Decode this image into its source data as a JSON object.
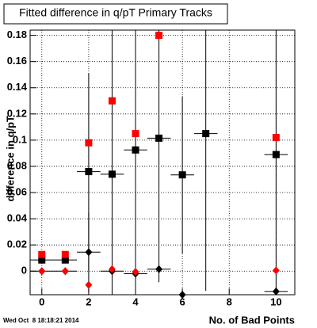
{
  "chart_data": {
    "type": "scatter",
    "title": "Fitted difference in q/pT Primary Tracks",
    "x_label": "No. of Bad Points",
    "y_label": "difference in q/pT",
    "timestamp": "Wed Oct  8 18:18:21 2014",
    "xlim": [
      -0.5,
      10.8
    ],
    "ylim": [
      -0.018,
      0.184
    ],
    "xticks": [
      0,
      2,
      4,
      6,
      8,
      10
    ],
    "yticks": [
      0,
      0.02,
      0.04,
      0.06,
      0.08,
      0.1,
      0.12,
      0.14,
      0.16,
      0.18
    ],
    "grid": true,
    "series": [
      {
        "color": "#000000",
        "marker": "square",
        "xerr": 0.5,
        "x": [
          0,
          1,
          2,
          3,
          4,
          5,
          6,
          7,
          10
        ],
        "values": [
          0.0085,
          0.0085,
          0.076,
          0.074,
          0.0925,
          0.1015,
          0.0735,
          0.105,
          0.089
        ],
        "errors": [
          0.002,
          0.002,
          0.075,
          0.12,
          0.12,
          0.11,
          0.06,
          0.12,
          0.11
        ]
      },
      {
        "color": "#ff0000",
        "marker": "square",
        "x": [
          0,
          1,
          2,
          3,
          4,
          5,
          10
        ],
        "values": [
          0.0127,
          0.0127,
          0.098,
          0.13,
          0.105,
          0.18,
          0.102
        ]
      },
      {
        "color": "#000000",
        "marker": "diamond",
        "xerr": 0.5,
        "x": [
          0,
          1,
          2,
          3,
          4,
          5,
          6,
          10
        ],
        "values": [
          0,
          0,
          0.0145,
          0,
          -0.002,
          0.0015,
          -0.018,
          -0.0155
        ],
        "errors": [
          0.001,
          0.001,
          0.03,
          0.003,
          0.003,
          0.003,
          0.003,
          0.003
        ]
      },
      {
        "color": "#ff0000",
        "marker": "diamond",
        "x": [
          0,
          1,
          2,
          3,
          4,
          10
        ],
        "values": [
          0,
          0,
          -0.0105,
          0.0015,
          -0.0005,
          0.0005
        ]
      }
    ]
  }
}
